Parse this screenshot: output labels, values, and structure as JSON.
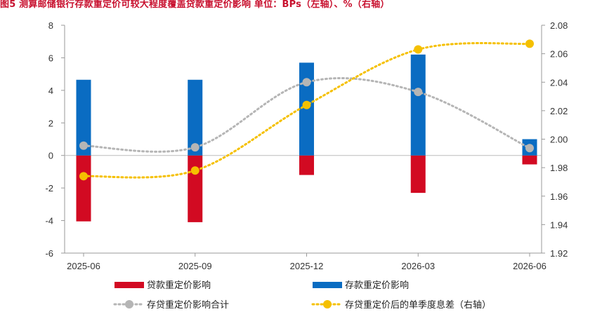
{
  "chart_data": {
    "type": "bar",
    "title": "图5 测算邮储银行存款重定价可较大程度覆盖贷款重定价影响 单位：BPs（左轴）、%（右轴）",
    "categories": [
      "2025-06",
      "2025-09",
      "2025-12",
      "2026-03",
      "2026-06"
    ],
    "y_left": {
      "min": -6,
      "max": 8,
      "step": 2,
      "ticks": [
        "-6",
        "-4",
        "-2",
        "0",
        "2",
        "4",
        "6",
        "8"
      ]
    },
    "y_right": {
      "min": 1.92,
      "max": 2.08,
      "step": 0.02,
      "ticks": [
        "1.92",
        "1.94",
        "1.96",
        "1.98",
        "2.00",
        "2.02",
        "2.04",
        "2.06",
        "2.08"
      ]
    },
    "series": [
      {
        "name": "贷款重定价影响",
        "type": "bar",
        "axis": "left",
        "color": "#d20a22",
        "values": [
          -4.05,
          -4.1,
          -1.2,
          -2.3,
          -0.55
        ]
      },
      {
        "name": "存款重定价影响",
        "type": "bar",
        "axis": "left",
        "color": "#0a6cc2",
        "values": [
          4.65,
          4.65,
          5.7,
          6.2,
          1.0
        ]
      },
      {
        "name": "存贷重定价影响合计",
        "type": "line",
        "axis": "left",
        "color": "#b5b5b5",
        "values": [
          0.6,
          0.5,
          4.5,
          3.9,
          0.45
        ]
      },
      {
        "name": "存贷重定价后的单季度息差（右轴）",
        "type": "line",
        "axis": "right",
        "color": "#f5c000",
        "values": [
          1.974,
          1.978,
          2.024,
          2.063,
          2.067
        ]
      }
    ]
  }
}
